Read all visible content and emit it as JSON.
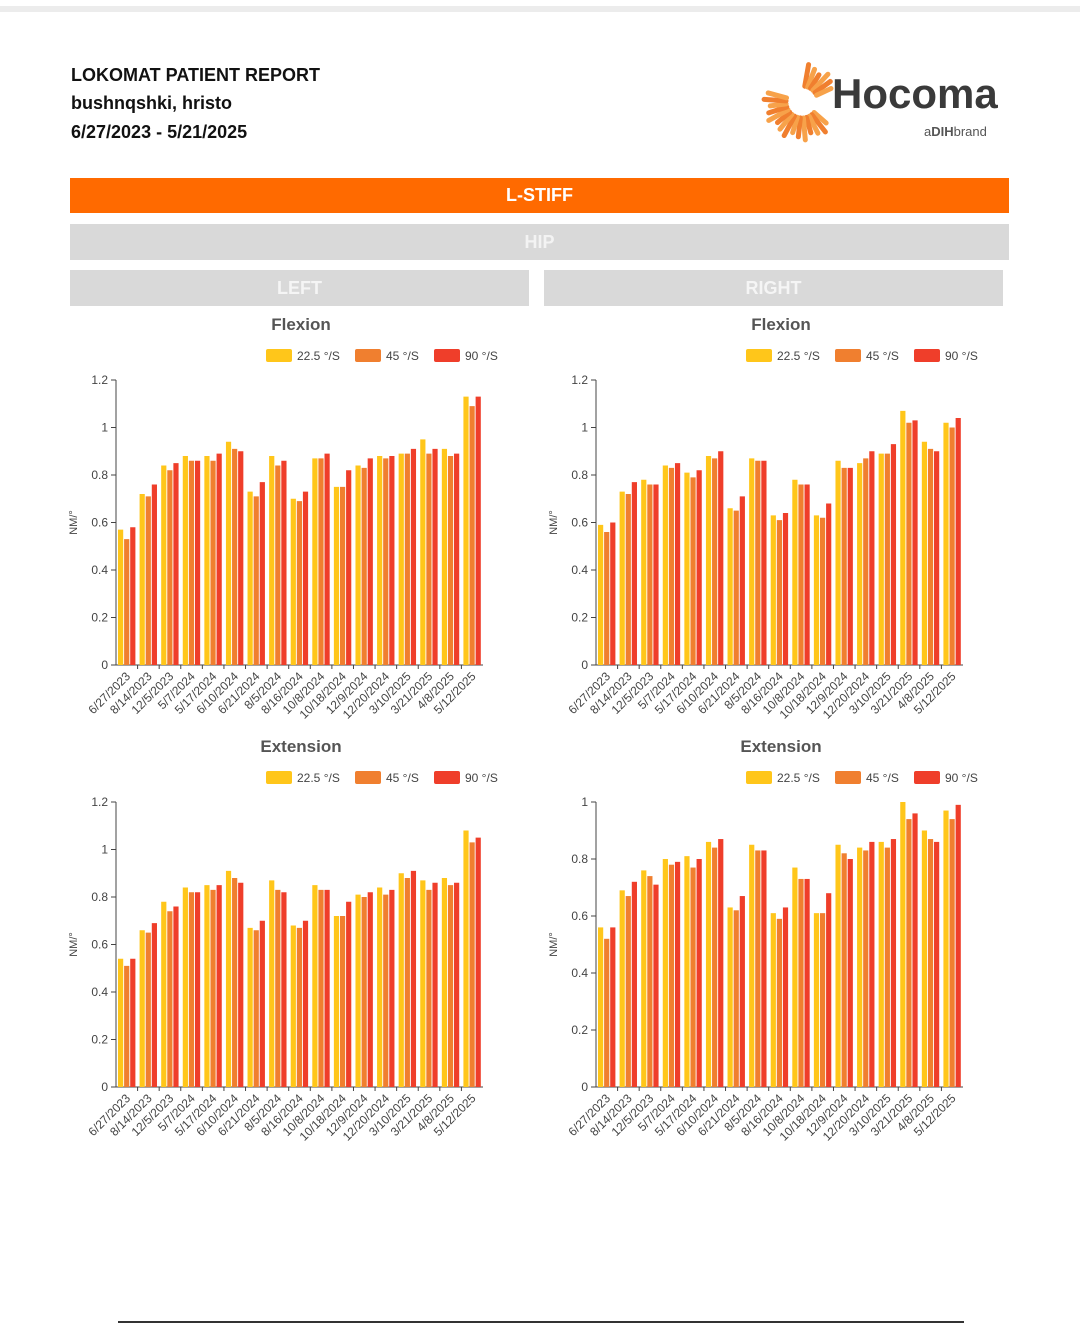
{
  "header": {
    "report_title": "LOKOMAT PATIENT REPORT",
    "patient_name": "bushnqshki, hristo",
    "date_range": "6/27/2023 - 5/21/2025"
  },
  "brand": {
    "name": "Hocoma",
    "tagline_prefix": "a",
    "tagline_mark": "DIH",
    "tagline_suffix": "brand"
  },
  "sections": {
    "main": "L-STIFF",
    "joint": "HIP",
    "left": "LEFT",
    "right": "RIGHT"
  },
  "colors": {
    "accent": "#ff6a00",
    "s1": "#ffc61a",
    "s2": "#f07f2f",
    "s3": "#ef3e2a"
  },
  "chart_data": [
    {
      "type": "bar",
      "title": "Flexion",
      "ylabel": "NM/°",
      "ylim": [
        0,
        1.2
      ],
      "yticks": [
        "0",
        "0.2",
        "0.4",
        "0.6",
        "0.8",
        "1",
        "1.2"
      ],
      "categories": [
        "6/27/2023",
        "8/14/2023",
        "12/5/2023",
        "5/7/2024",
        "5/17/2024",
        "6/10/2024",
        "6/21/2024",
        "8/5/2024",
        "8/16/2024",
        "10/8/2024",
        "10/18/2024",
        "12/9/2024",
        "12/20/2024",
        "3/10/2025",
        "3/21/2025",
        "4/8/2025",
        "5/12/2025"
      ],
      "series": [
        {
          "name": "22.5 °/S",
          "values": [
            0.57,
            0.72,
            0.84,
            0.88,
            0.88,
            0.94,
            0.73,
            0.88,
            0.7,
            0.87,
            0.75,
            0.84,
            0.88,
            0.89,
            0.95,
            0.91,
            1.13
          ]
        },
        {
          "name": "45 °/S",
          "values": [
            0.53,
            0.71,
            0.82,
            0.86,
            0.86,
            0.91,
            0.71,
            0.84,
            0.69,
            0.87,
            0.75,
            0.83,
            0.87,
            0.89,
            0.89,
            0.88,
            1.09
          ]
        },
        {
          "name": "90 °/S",
          "values": [
            0.58,
            0.76,
            0.85,
            0.86,
            0.89,
            0.9,
            0.77,
            0.86,
            0.73,
            0.89,
            0.82,
            0.87,
            0.88,
            0.91,
            0.91,
            0.89,
            1.13
          ]
        }
      ]
    },
    {
      "type": "bar",
      "title": "Flexion",
      "ylabel": "NM/°",
      "ylim": [
        0,
        1.2
      ],
      "yticks": [
        "0",
        "0.2",
        "0.4",
        "0.6",
        "0.8",
        "1",
        "1.2"
      ],
      "categories": [
        "6/27/2023",
        "8/14/2023",
        "12/5/2023",
        "5/7/2024",
        "5/17/2024",
        "6/10/2024",
        "6/21/2024",
        "8/5/2024",
        "8/16/2024",
        "10/8/2024",
        "10/18/2024",
        "12/9/2024",
        "12/20/2024",
        "3/10/2025",
        "3/21/2025",
        "4/8/2025",
        "5/12/2025"
      ],
      "series": [
        {
          "name": "22.5 °/S",
          "values": [
            0.59,
            0.73,
            0.78,
            0.84,
            0.81,
            0.88,
            0.66,
            0.87,
            0.63,
            0.78,
            0.63,
            0.86,
            0.85,
            0.89,
            1.07,
            0.94,
            1.02
          ]
        },
        {
          "name": "45 °/S",
          "values": [
            0.56,
            0.72,
            0.76,
            0.83,
            0.79,
            0.87,
            0.65,
            0.86,
            0.61,
            0.76,
            0.62,
            0.83,
            0.87,
            0.89,
            1.02,
            0.91,
            1.0
          ]
        },
        {
          "name": "90 °/S",
          "values": [
            0.6,
            0.77,
            0.76,
            0.85,
            0.82,
            0.9,
            0.71,
            0.86,
            0.64,
            0.76,
            0.68,
            0.83,
            0.9,
            0.93,
            1.03,
            0.9,
            1.04
          ]
        }
      ]
    },
    {
      "type": "bar",
      "title": "Extension",
      "ylabel": "NM/°",
      "ylim": [
        0,
        1.2
      ],
      "yticks": [
        "0",
        "0.2",
        "0.4",
        "0.6",
        "0.8",
        "1",
        "1.2"
      ],
      "categories": [
        "6/27/2023",
        "8/14/2023",
        "12/5/2023",
        "5/7/2024",
        "5/17/2024",
        "6/10/2024",
        "6/21/2024",
        "8/5/2024",
        "8/16/2024",
        "10/8/2024",
        "10/18/2024",
        "12/9/2024",
        "12/20/2024",
        "3/10/2025",
        "3/21/2025",
        "4/8/2025",
        "5/12/2025"
      ],
      "series": [
        {
          "name": "22.5 °/S",
          "values": [
            0.54,
            0.66,
            0.78,
            0.84,
            0.85,
            0.91,
            0.67,
            0.87,
            0.68,
            0.85,
            0.72,
            0.81,
            0.84,
            0.9,
            0.87,
            0.88,
            1.08
          ]
        },
        {
          "name": "45 °/S",
          "values": [
            0.51,
            0.65,
            0.74,
            0.82,
            0.83,
            0.88,
            0.66,
            0.83,
            0.67,
            0.83,
            0.72,
            0.8,
            0.81,
            0.88,
            0.83,
            0.85,
            1.03
          ]
        },
        {
          "name": "90 °/S",
          "values": [
            0.54,
            0.69,
            0.76,
            0.82,
            0.85,
            0.86,
            0.7,
            0.82,
            0.7,
            0.83,
            0.78,
            0.82,
            0.83,
            0.91,
            0.86,
            0.86,
            1.05
          ]
        }
      ]
    },
    {
      "type": "bar",
      "title": "Extension",
      "ylabel": "NM/°",
      "ylim": [
        0,
        1
      ],
      "yticks": [
        "0",
        "0.2",
        "0.4",
        "0.6",
        "0.8",
        "1"
      ],
      "categories": [
        "6/27/2023",
        "8/14/2023",
        "12/5/2023",
        "5/7/2024",
        "5/17/2024",
        "6/10/2024",
        "6/21/2024",
        "8/5/2024",
        "8/16/2024",
        "10/8/2024",
        "10/18/2024",
        "12/9/2024",
        "12/20/2024",
        "3/10/2025",
        "3/21/2025",
        "4/8/2025",
        "5/12/2025"
      ],
      "series": [
        {
          "name": "22.5 °/S",
          "values": [
            0.56,
            0.69,
            0.76,
            0.8,
            0.81,
            0.86,
            0.63,
            0.85,
            0.61,
            0.77,
            0.61,
            0.85,
            0.84,
            0.86,
            1.0,
            0.9,
            0.97
          ]
        },
        {
          "name": "45 °/S",
          "values": [
            0.52,
            0.67,
            0.74,
            0.78,
            0.77,
            0.84,
            0.62,
            0.83,
            0.59,
            0.73,
            0.61,
            0.82,
            0.83,
            0.84,
            0.94,
            0.87,
            0.94
          ]
        },
        {
          "name": "90 °/S",
          "values": [
            0.56,
            0.72,
            0.71,
            0.79,
            0.8,
            0.87,
            0.67,
            0.83,
            0.63,
            0.73,
            0.68,
            0.8,
            0.86,
            0.87,
            0.96,
            0.86,
            0.99
          ]
        }
      ]
    }
  ]
}
